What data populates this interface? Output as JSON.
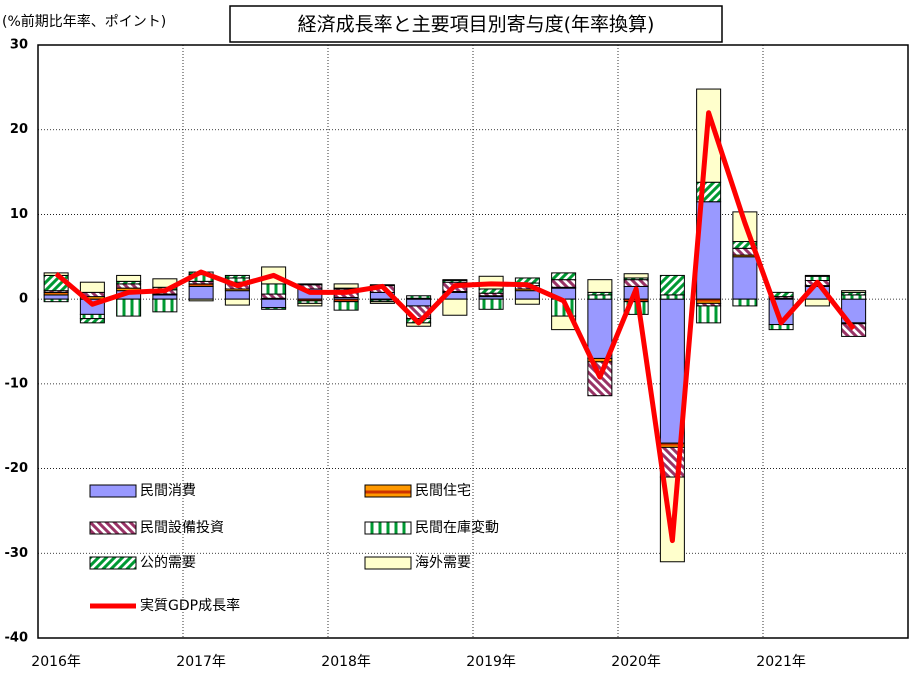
{
  "chart_data": {
    "type": "stacked-bar-line",
    "title": "経済成長率と主要項目別寄与度(年率換算)",
    "y_axis_label": "(%前期比年率、ポイント)",
    "categories": [
      "2016年",
      null,
      null,
      null,
      "2017年",
      null,
      null,
      null,
      "2018年",
      null,
      null,
      null,
      "2019年",
      null,
      null,
      null,
      "2020年",
      null,
      null,
      null,
      "2021年",
      null,
      null
    ],
    "ylim": [
      -40,
      30
    ],
    "yticks": [
      -40,
      -30,
      -20,
      -10,
      0,
      10,
      20,
      30
    ],
    "negative_tick_color": "#ff0000",
    "grid": true,
    "legend": "lower-left",
    "series": [
      {
        "name": "民間消費",
        "color": "#9999ff",
        "hatch": {
          "style": "none",
          "color": "#9999ff"
        },
        "values": [
          0.5,
          -1.8,
          1.0,
          0.5,
          1.5,
          1.0,
          -1.0,
          1.2,
          0.2,
          0.8,
          -0.8,
          0.8,
          0.3,
          1.0,
          1.3,
          -7.0,
          1.5,
          -17.0,
          11.5,
          5.0,
          -3.0,
          1.5,
          -2.8
        ]
      },
      {
        "name": "民間住宅",
        "color": "#ff9900",
        "hatch": {
          "style": "horizontal",
          "color": "#cc3300"
        },
        "values": [
          0.3,
          0.3,
          0.3,
          0.1,
          0.3,
          0.2,
          0.1,
          -0.2,
          -0.3,
          -0.1,
          0.1,
          0.1,
          0.1,
          0.2,
          0.1,
          -0.4,
          -0.3,
          -0.5,
          -0.5,
          0.2,
          0.1,
          0.1,
          -0.1
        ]
      },
      {
        "name": "民間設備投資",
        "color": "#ffffff",
        "hatch": {
          "style": "back-diagonal",
          "color": "#993366"
        },
        "values": [
          0.2,
          0.5,
          0.5,
          0.5,
          0.3,
          0.8,
          0.5,
          0.5,
          1.0,
          0.8,
          -1.5,
          1.1,
          0.3,
          0.4,
          0.9,
          -4.0,
          0.8,
          -3.5,
          -0.3,
          0.8,
          0.2,
          0.6,
          -1.5
        ]
      },
      {
        "name": "民間在庫変動",
        "color": "#ffffff",
        "hatch": {
          "style": "vertical",
          "color": "#009933"
        },
        "values": [
          -0.3,
          -0.5,
          -2.0,
          -1.5,
          0.8,
          0.5,
          1.2,
          -0.3,
          -1.0,
          -0.2,
          0.3,
          0.2,
          -1.2,
          0.3,
          -2.0,
          0.5,
          -1.5,
          0.5,
          -2.0,
          -0.8,
          -0.6,
          0.5,
          0.5
        ]
      },
      {
        "name": "公的需要",
        "color": "#ffffff",
        "hatch": {
          "style": "diagonal",
          "color": "#009933"
        },
        "values": [
          1.8,
          -0.5,
          0.3,
          0.3,
          0.3,
          0.3,
          -0.2,
          0.1,
          0.1,
          0.1,
          -0.5,
          0.1,
          0.5,
          0.6,
          0.8,
          0.3,
          0.2,
          2.3,
          2.3,
          0.8,
          0.5,
          0.1,
          0.3
        ]
      },
      {
        "name": "海外需要",
        "color": "#ffffcc",
        "hatch": {
          "style": "none",
          "color": "#ffffcc"
        },
        "values": [
          0.3,
          1.2,
          0.7,
          1.0,
          -0.2,
          -0.7,
          2.0,
          -0.3,
          0.5,
          -0.2,
          -0.4,
          -1.9,
          1.5,
          -0.6,
          -1.6,
          1.5,
          0.5,
          -10.0,
          11.0,
          3.5,
          0.0,
          -0.8,
          0.2
        ]
      },
      {
        "name": "実質GDP成長率",
        "type": "line",
        "color": "#ff0000",
        "values": [
          3.0,
          -0.6,
          0.8,
          1.0,
          3.2,
          1.6,
          2.8,
          0.8,
          0.8,
          1.5,
          -2.8,
          1.6,
          1.8,
          1.7,
          -0.2,
          -9.2,
          1.2,
          -28.5,
          22.0,
          9.0,
          -2.8,
          2.0,
          -3.5
        ]
      }
    ]
  }
}
